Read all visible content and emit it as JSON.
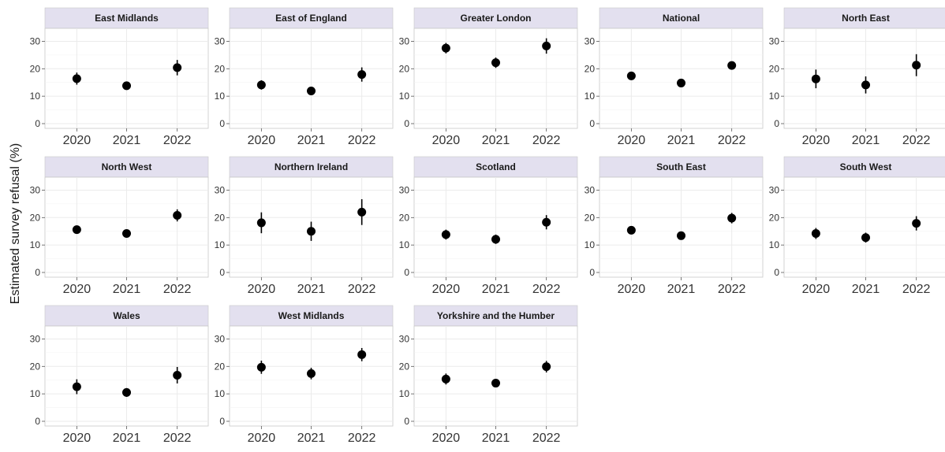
{
  "chart_data": {
    "type": "scatter",
    "subtype": "faceted point-range (dot with error bar)",
    "ylabel": "Estimated survey refusal (%)",
    "xlabel": "",
    "x_categories": [
      "2020",
      "2021",
      "2022"
    ],
    "yticks": [
      0,
      10,
      20,
      30
    ],
    "ylim": [
      0,
      33
    ],
    "grid": true,
    "colors": {
      "point": "#000000",
      "strip": "#e3e0ef",
      "grid": "#ebebeb",
      "border": "#c8c8c8"
    },
    "facets": [
      {
        "name": "East Midlands",
        "points": [
          {
            "x": "2020",
            "y": 16.4,
            "lo": 14.2,
            "hi": 18.6
          },
          {
            "x": "2021",
            "y": 13.8,
            "lo": 12.5,
            "hi": 15.1
          },
          {
            "x": "2022",
            "y": 20.4,
            "lo": 17.6,
            "hi": 23.2
          }
        ]
      },
      {
        "name": "East of England",
        "points": [
          {
            "x": "2020",
            "y": 14.1,
            "lo": 12.4,
            "hi": 15.8
          },
          {
            "x": "2021",
            "y": 11.9,
            "lo": 10.9,
            "hi": 12.9
          },
          {
            "x": "2022",
            "y": 17.9,
            "lo": 15.3,
            "hi": 20.5
          }
        ]
      },
      {
        "name": "Greater London",
        "points": [
          {
            "x": "2020",
            "y": 27.5,
            "lo": 25.6,
            "hi": 29.4
          },
          {
            "x": "2021",
            "y": 22.2,
            "lo": 20.3,
            "hi": 24.1
          },
          {
            "x": "2022",
            "y": 28.3,
            "lo": 25.5,
            "hi": 31.1
          }
        ]
      },
      {
        "name": "National",
        "points": [
          {
            "x": "2020",
            "y": 17.4,
            "lo": 16.6,
            "hi": 18.2
          },
          {
            "x": "2021",
            "y": 14.8,
            "lo": 14.1,
            "hi": 15.5
          },
          {
            "x": "2022",
            "y": 21.2,
            "lo": 20.2,
            "hi": 22.2
          }
        ]
      },
      {
        "name": "North East",
        "points": [
          {
            "x": "2020",
            "y": 16.3,
            "lo": 12.9,
            "hi": 19.7
          },
          {
            "x": "2021",
            "y": 14.1,
            "lo": 11.0,
            "hi": 17.2
          },
          {
            "x": "2022",
            "y": 21.3,
            "lo": 17.3,
            "hi": 25.3
          }
        ]
      },
      {
        "name": "North West",
        "points": [
          {
            "x": "2020",
            "y": 15.6,
            "lo": 14.1,
            "hi": 17.1
          },
          {
            "x": "2021",
            "y": 14.2,
            "lo": 12.9,
            "hi": 15.5
          },
          {
            "x": "2022",
            "y": 20.8,
            "lo": 18.6,
            "hi": 23.0
          }
        ]
      },
      {
        "name": "Northern Ireland",
        "points": [
          {
            "x": "2020",
            "y": 18.1,
            "lo": 14.3,
            "hi": 21.9
          },
          {
            "x": "2021",
            "y": 15.0,
            "lo": 11.5,
            "hi": 18.5
          },
          {
            "x": "2022",
            "y": 22.0,
            "lo": 17.3,
            "hi": 26.7
          }
        ]
      },
      {
        "name": "Scotland",
        "points": [
          {
            "x": "2020",
            "y": 13.8,
            "lo": 12.0,
            "hi": 15.6
          },
          {
            "x": "2021",
            "y": 12.1,
            "lo": 10.4,
            "hi": 13.8
          },
          {
            "x": "2022",
            "y": 18.3,
            "lo": 15.7,
            "hi": 20.9
          }
        ]
      },
      {
        "name": "South East",
        "points": [
          {
            "x": "2020",
            "y": 15.4,
            "lo": 14.0,
            "hi": 16.8
          },
          {
            "x": "2021",
            "y": 13.4,
            "lo": 12.2,
            "hi": 14.6
          },
          {
            "x": "2022",
            "y": 19.8,
            "lo": 17.9,
            "hi": 21.7
          }
        ]
      },
      {
        "name": "South West",
        "points": [
          {
            "x": "2020",
            "y": 14.2,
            "lo": 12.2,
            "hi": 16.2
          },
          {
            "x": "2021",
            "y": 12.7,
            "lo": 10.9,
            "hi": 14.5
          },
          {
            "x": "2022",
            "y": 17.9,
            "lo": 15.3,
            "hi": 20.5
          }
        ]
      },
      {
        "name": "Wales",
        "points": [
          {
            "x": "2020",
            "y": 12.6,
            "lo": 9.9,
            "hi": 15.3
          },
          {
            "x": "2021",
            "y": 10.5,
            "lo": 8.9,
            "hi": 12.1
          },
          {
            "x": "2022",
            "y": 16.8,
            "lo": 13.8,
            "hi": 19.8
          }
        ]
      },
      {
        "name": "West Midlands",
        "points": [
          {
            "x": "2020",
            "y": 19.7,
            "lo": 17.3,
            "hi": 22.1
          },
          {
            "x": "2021",
            "y": 17.4,
            "lo": 15.3,
            "hi": 19.5
          },
          {
            "x": "2022",
            "y": 24.3,
            "lo": 21.9,
            "hi": 26.7
          }
        ]
      },
      {
        "name": "Yorkshire and the Humber",
        "points": [
          {
            "x": "2020",
            "y": 15.4,
            "lo": 13.4,
            "hi": 17.4
          },
          {
            "x": "2021",
            "y": 13.9,
            "lo": 12.8,
            "hi": 15.0
          },
          {
            "x": "2022",
            "y": 19.9,
            "lo": 17.8,
            "hi": 22.0
          }
        ]
      }
    ]
  }
}
